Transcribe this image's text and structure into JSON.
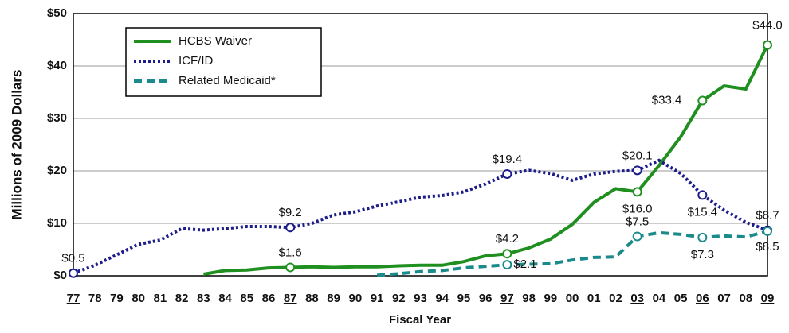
{
  "chart_data": {
    "type": "line",
    "ylabel": "Millions of 2009 Dollars",
    "xlabel": "Fiscal Year",
    "categories": [
      "77",
      "78",
      "79",
      "80",
      "81",
      "82",
      "83",
      "84",
      "85",
      "86",
      "87",
      "88",
      "89",
      "90",
      "91",
      "92",
      "93",
      "94",
      "95",
      "96",
      "97",
      "98",
      "99",
      "00",
      "01",
      "02",
      "03",
      "04",
      "05",
      "06",
      "07",
      "08",
      "09"
    ],
    "highlight_indices": [
      0,
      10,
      20,
      26,
      29,
      32
    ],
    "ylim": [
      0,
      50
    ],
    "yticks": [
      {
        "value": 0,
        "label": "$0"
      },
      {
        "value": 10,
        "label": "$10"
      },
      {
        "value": 20,
        "label": "$20"
      },
      {
        "value": 30,
        "label": "$30"
      },
      {
        "value": 40,
        "label": "$40"
      },
      {
        "value": 50,
        "label": "$50"
      }
    ],
    "grid": true,
    "legend": "upper left",
    "series": [
      {
        "name": "HCBS Waiver",
        "color": "#1f8f1f",
        "style": "solid",
        "values": [
          null,
          null,
          null,
          null,
          null,
          null,
          0.3,
          1.0,
          1.1,
          1.5,
          1.6,
          1.7,
          1.6,
          1.7,
          1.7,
          1.9,
          2.0,
          2.0,
          2.7,
          3.8,
          4.2,
          5.3,
          7.0,
          9.8,
          14.0,
          16.6,
          16.0,
          21.0,
          26.5,
          33.4,
          36.2,
          35.6,
          44.0
        ],
        "value_labels": [
          null,
          null,
          null,
          null,
          null,
          null,
          null,
          null,
          null,
          null,
          "$1.6",
          null,
          null,
          null,
          null,
          null,
          null,
          null,
          null,
          null,
          "$4.2",
          null,
          null,
          null,
          null,
          null,
          "$16.0",
          null,
          null,
          "$33.4",
          null,
          null,
          "$44.0"
        ]
      },
      {
        "name": "ICF/ID",
        "color": "#1c1c8a",
        "style": "dotted",
        "values": [
          0.5,
          2.0,
          4.0,
          6.0,
          6.8,
          9.0,
          8.7,
          9.0,
          9.4,
          9.4,
          9.2,
          10.0,
          11.6,
          12.2,
          13.3,
          14.1,
          15.0,
          15.3,
          16.0,
          17.5,
          19.4,
          20.1,
          19.5,
          18.2,
          19.4,
          19.9,
          20.1,
          22.0,
          19.5,
          15.4,
          12.5,
          10.2,
          8.7
        ],
        "value_labels": [
          "$0.5",
          null,
          null,
          null,
          null,
          null,
          null,
          null,
          null,
          null,
          "$9.2",
          null,
          null,
          null,
          null,
          null,
          null,
          null,
          null,
          null,
          "$19.4",
          null,
          null,
          null,
          null,
          null,
          "$20.1",
          null,
          null,
          "$15.4",
          null,
          null,
          "$8.7"
        ]
      },
      {
        "name": "Related Medicaid*",
        "color": "#1a8a8a",
        "style": "dashed",
        "values": [
          null,
          null,
          null,
          null,
          null,
          null,
          null,
          null,
          null,
          null,
          null,
          null,
          null,
          null,
          0.1,
          0.4,
          0.8,
          1.0,
          1.5,
          1.8,
          2.1,
          2.2,
          2.3,
          3.0,
          3.5,
          3.6,
          7.5,
          8.2,
          7.9,
          7.3,
          7.6,
          7.4,
          8.5
        ],
        "value_labels": [
          null,
          null,
          null,
          null,
          null,
          null,
          null,
          null,
          null,
          null,
          null,
          null,
          null,
          null,
          null,
          null,
          null,
          null,
          null,
          null,
          "$2.1",
          null,
          null,
          null,
          null,
          null,
          "$7.5",
          null,
          null,
          "$7.3",
          null,
          null,
          "$8.5"
        ]
      }
    ]
  }
}
